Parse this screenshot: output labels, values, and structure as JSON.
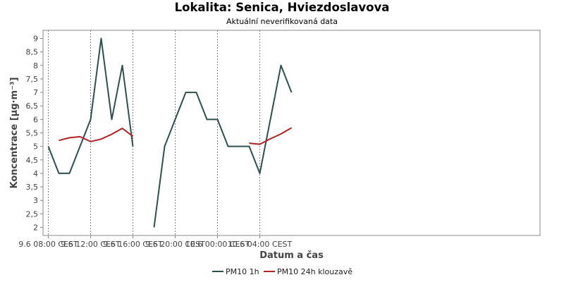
{
  "chart_data": {
    "type": "line",
    "title": "Lokalita: Senica, Hviezdoslavova",
    "subtitle": "Aktuální neverifikovaná data",
    "xlabel": "Datum a čas",
    "ylabel": "Koncentrace [µg·m⁻³]",
    "ylim": [
      1.7,
      9.3
    ],
    "y_ticks": [
      "2",
      "2,5",
      "3",
      "3,5",
      "4",
      "4,5",
      "5",
      "5,5",
      "6",
      "6,5",
      "7",
      "7,5",
      "8",
      "8,5",
      "9"
    ],
    "x_range_hours": [
      7.5,
      54.5
    ],
    "x_ticks": [
      {
        "label": "9.6 08:00 CEST",
        "hour": 8
      },
      {
        "label": "9.6 12:00 CEST",
        "hour": 12
      },
      {
        "label": "9.6 16:00 CEST",
        "hour": 16
      },
      {
        "label": "9.6 20:00 CEST",
        "hour": 20
      },
      {
        "label": "10.6 00:00 CEST",
        "hour": 24
      },
      {
        "label": "10.6 04:00 CEST",
        "hour": 28
      }
    ],
    "grid": true,
    "legend": "bottom",
    "series": [
      {
        "name": "PM10 1h",
        "color": "#2f4f4f",
        "points": [
          [
            8,
            5
          ],
          [
            9,
            4
          ],
          [
            10,
            4
          ],
          [
            11,
            5
          ],
          [
            12,
            6
          ],
          [
            13,
            9
          ],
          [
            14,
            6
          ],
          [
            15,
            8
          ],
          [
            16,
            5
          ],
          null,
          [
            18,
            2
          ],
          [
            19,
            5
          ],
          [
            20,
            6
          ],
          [
            21,
            7
          ],
          [
            22,
            7
          ],
          [
            23,
            6
          ],
          [
            24,
            6
          ],
          [
            25,
            5
          ],
          [
            26,
            5
          ],
          [
            27,
            5
          ],
          [
            28,
            4
          ],
          [
            29,
            6
          ],
          [
            30,
            8
          ],
          [
            31,
            7
          ]
        ]
      },
      {
        "name": "PM10 24h klouzavě",
        "color": "#b22222",
        "points": [
          [
            9,
            5.22
          ],
          [
            10,
            5.32
          ],
          [
            11,
            5.36
          ],
          [
            12,
            5.18
          ],
          [
            13,
            5.27
          ],
          [
            14,
            5.45
          ],
          [
            15,
            5.67
          ],
          [
            16,
            5.37
          ],
          null,
          [
            27,
            5.12
          ],
          [
            28,
            5.08
          ],
          [
            29,
            5.28
          ],
          [
            30,
            5.46
          ],
          [
            31,
            5.69
          ]
        ]
      }
    ]
  }
}
